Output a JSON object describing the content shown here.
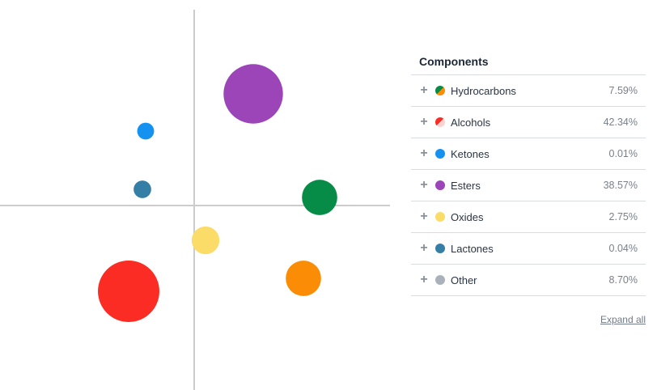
{
  "chart_data": {
    "type": "scatter",
    "title": "",
    "xlabel": "",
    "ylabel": "",
    "grid": false,
    "xlim": [
      -240,
      240
    ],
    "ylim": [
      -228,
      228
    ],
    "points": [
      {
        "category": "Esters",
        "x": 73,
        "y": 138,
        "size": 38.57,
        "color": "#9b45b8"
      },
      {
        "category": "Ketones",
        "x": -60,
        "y": 92,
        "size": 0.01,
        "color": "#1592f0"
      },
      {
        "category": "Lactones",
        "x": -64,
        "y": 20,
        "size": 0.04,
        "color": "#357ea5"
      },
      {
        "category": "Hydrocarbons",
        "x": 155,
        "y": 10,
        "size": 7.59,
        "color": "#078c47"
      },
      {
        "category": "Oxides",
        "x": 14,
        "y": -43,
        "size": 2.75,
        "color": "#fbdc69"
      },
      {
        "category": "Hydrocarbons",
        "x": 135,
        "y": -90,
        "size": 7.59,
        "color": "#fb8c05"
      },
      {
        "category": "Alcohols",
        "x": -81,
        "y": -106,
        "size": 42.34,
        "color": "#fb2c24"
      }
    ]
  },
  "panel": {
    "title": "Components",
    "expand_label": "Expand all",
    "items": [
      {
        "label": "Hydrocarbons",
        "value": "7.59%",
        "icon": "plus-icon",
        "colors": [
          "#078c47",
          "#fb8c05"
        ]
      },
      {
        "label": "Alcohols",
        "value": "42.34%",
        "icon": "plus-icon",
        "colors": [
          "#fb2c24",
          "#fbd2d0"
        ]
      },
      {
        "label": "Ketones",
        "value": "0.01%",
        "icon": "plus-icon",
        "colors": [
          "#1592f0"
        ]
      },
      {
        "label": "Esters",
        "value": "38.57%",
        "icon": "plus-icon",
        "colors": [
          "#9b45b8"
        ]
      },
      {
        "label": "Oxides",
        "value": "2.75%",
        "icon": "plus-icon",
        "colors": [
          "#fbdc69"
        ]
      },
      {
        "label": "Lactones",
        "value": "0.04%",
        "icon": "plus-icon",
        "colors": [
          "#357ea5"
        ]
      },
      {
        "label": "Other",
        "value": "8.70%",
        "icon": "plus-icon",
        "colors": [
          "#a9b2ba"
        ]
      }
    ]
  }
}
